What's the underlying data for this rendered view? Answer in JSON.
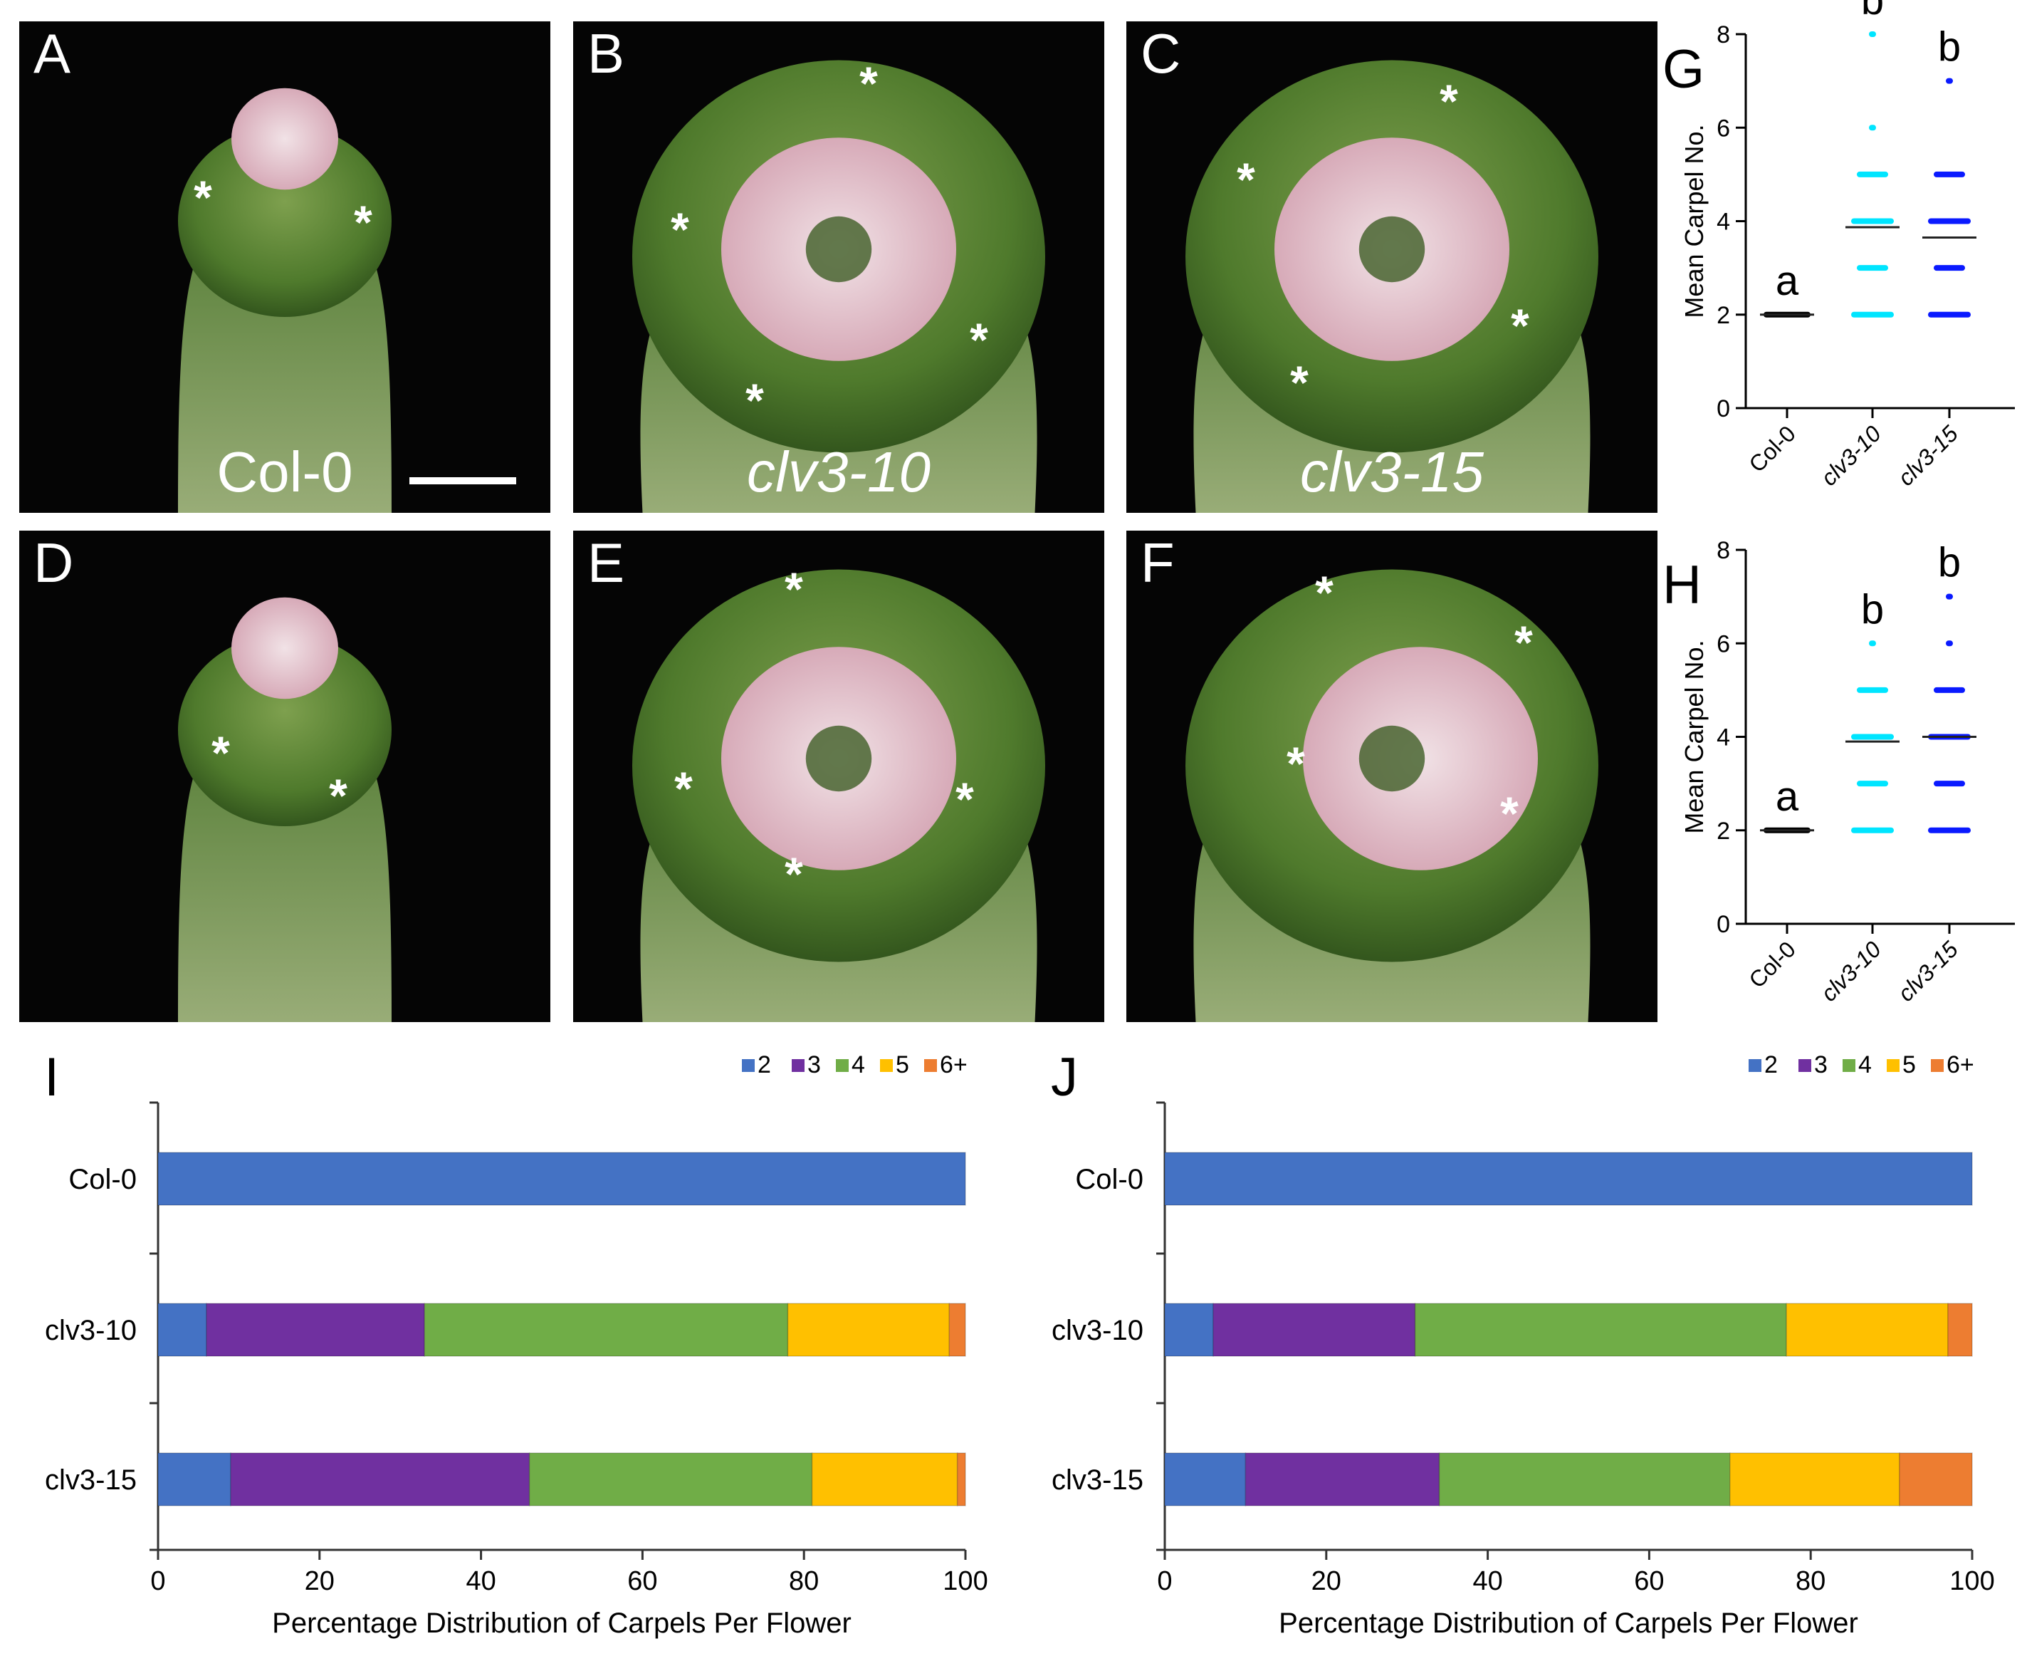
{
  "photos": [
    {
      "letter": "A",
      "genotype": "Col-0",
      "italic": false,
      "scale_bar": true
    },
    {
      "letter": "B",
      "genotype": "clv3-10",
      "italic": true,
      "scale_bar": false
    },
    {
      "letter": "C",
      "genotype": "clv3-15",
      "italic": true,
      "scale_bar": false
    },
    {
      "letter": "D",
      "genotype": "",
      "italic": false,
      "scale_bar": false
    },
    {
      "letter": "E",
      "genotype": "",
      "italic": false,
      "scale_bar": false
    },
    {
      "letter": "F",
      "genotype": "",
      "italic": false,
      "scale_bar": false
    }
  ],
  "sepal_marker": "*",
  "colors": {
    "col0": "#000000",
    "clv3_10": "#00e5ff",
    "clv3_15": "#0a1aff",
    "c2": "#4472c4",
    "c3": "#7030a0",
    "c4": "#70ad47",
    "c5": "#ffc000",
    "c6plus": "#ed7d31"
  },
  "chart_data": [
    {
      "panel": "G",
      "type": "scatter",
      "ylabel": "Mean Carpel No.",
      "ylim": [
        0,
        8
      ],
      "yticks": [
        "0",
        "2",
        "4",
        "6",
        "8"
      ],
      "categories": [
        "Col-0",
        "clv3-10",
        "clv3-15"
      ],
      "significance": [
        "a",
        "b",
        "b"
      ],
      "points": [
        [
          2
        ],
        [
          2,
          3,
          4,
          5,
          6,
          8
        ],
        [
          2,
          3,
          4,
          5,
          7
        ]
      ],
      "means": [
        2.0,
        3.87,
        3.65
      ]
    },
    {
      "panel": "H",
      "type": "scatter",
      "ylabel": "Mean Carpel No.",
      "ylim": [
        0,
        8
      ],
      "yticks": [
        "0",
        "2",
        "4",
        "6",
        "8"
      ],
      "categories": [
        "Col-0",
        "clv3-10",
        "clv3-15"
      ],
      "significance": [
        "a",
        "b",
        "b"
      ],
      "points": [
        [
          2
        ],
        [
          2,
          3,
          4,
          5,
          6
        ],
        [
          2,
          3,
          4,
          5,
          6,
          7
        ]
      ],
      "means": [
        2.0,
        3.9,
        4.0
      ]
    },
    {
      "panel": "I",
      "type": "bar",
      "orientation": "horizontal-stacked",
      "xlabel": "Percentage Distribution of Carpels Per Flower",
      "xlim": [
        0,
        100
      ],
      "xticks": [
        "0",
        "20",
        "40",
        "60",
        "80",
        "100"
      ],
      "legend": [
        "2",
        "3",
        "4",
        "5",
        "6+"
      ],
      "legend_position": "top-right",
      "categories": [
        "Col-0",
        "clv3-10",
        "clv3-15"
      ],
      "series": [
        {
          "name": "2",
          "values": [
            100,
            6,
            9
          ]
        },
        {
          "name": "3",
          "values": [
            0,
            27,
            37
          ]
        },
        {
          "name": "4",
          "values": [
            0,
            45,
            35
          ]
        },
        {
          "name": "5",
          "values": [
            0,
            20,
            18
          ]
        },
        {
          "name": "6+",
          "values": [
            0,
            2,
            1
          ]
        }
      ]
    },
    {
      "panel": "J",
      "type": "bar",
      "orientation": "horizontal-stacked",
      "xlabel": "Percentage Distribution of Carpels Per Flower",
      "xlim": [
        0,
        100
      ],
      "xticks": [
        "0",
        "20",
        "40",
        "60",
        "80",
        "100"
      ],
      "legend": [
        "2",
        "3",
        "4",
        "5",
        "6+"
      ],
      "legend_position": "top-right",
      "categories": [
        "Col-0",
        "clv3-10",
        "clv3-15"
      ],
      "series": [
        {
          "name": "2",
          "values": [
            100,
            6,
            10
          ]
        },
        {
          "name": "3",
          "values": [
            0,
            25,
            24
          ]
        },
        {
          "name": "4",
          "values": [
            0,
            46,
            36
          ]
        },
        {
          "name": "5",
          "values": [
            0,
            20,
            21
          ]
        },
        {
          "name": "6+",
          "values": [
            0,
            3,
            9
          ]
        }
      ]
    }
  ]
}
